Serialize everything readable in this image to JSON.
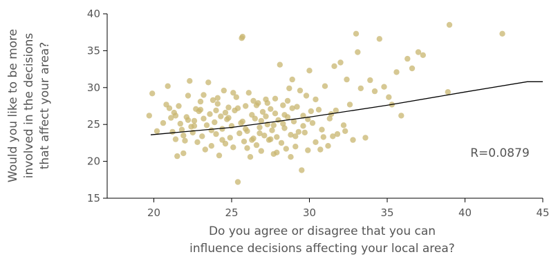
{
  "chart_data": {
    "type": "scatter",
    "title": "",
    "xlabel_lines": [
      "Do you agree or disagree that you can",
      "influence decisions affecting your local area?"
    ],
    "ylabel_lines": [
      "Would you like to be more",
      "involved in the decisions",
      "that affect your area?"
    ],
    "xlim": [
      17,
      45
    ],
    "ylim": [
      15,
      40
    ],
    "x_ticks": [
      20,
      25,
      30,
      35,
      40,
      45
    ],
    "y_ticks": [
      15,
      20,
      25,
      30,
      35,
      40
    ],
    "grid": false,
    "annotation": "R=0.0879",
    "point_color": "#c8b56f",
    "trendline": {
      "color": "#000000",
      "points": [
        [
          19.8,
          23.6
        ],
        [
          25,
          24.6
        ],
        [
          30,
          26.0
        ],
        [
          35,
          27.6
        ],
        [
          40,
          29.4
        ],
        [
          44,
          30.8
        ],
        [
          45,
          30.8
        ]
      ]
    },
    "points": [
      [
        19.7,
        26.2
      ],
      [
        19.9,
        29.2
      ],
      [
        20.2,
        24.1
      ],
      [
        20.8,
        27.7
      ],
      [
        20.9,
        30.2
      ],
      [
        21.0,
        27.2
      ],
      [
        21.1,
        25.9
      ],
      [
        21.2,
        24.0
      ],
      [
        21.3,
        26.6
      ],
      [
        21.4,
        23.0
      ],
      [
        21.5,
        20.7
      ],
      [
        21.6,
        27.5
      ],
      [
        21.7,
        25.1
      ],
      [
        21.8,
        24.3
      ],
      [
        21.9,
        21.1
      ],
      [
        22.0,
        22.8
      ],
      [
        22.1,
        26.0
      ],
      [
        22.2,
        28.9
      ],
      [
        22.3,
        30.9
      ],
      [
        22.4,
        24.7
      ],
      [
        22.5,
        23.9
      ],
      [
        22.6,
        25.5
      ],
      [
        22.8,
        22.6
      ],
      [
        22.9,
        26.8
      ],
      [
        23.0,
        27.0
      ],
      [
        23.1,
        23.4
      ],
      [
        23.2,
        29.0
      ],
      [
        23.3,
        21.6
      ],
      [
        23.4,
        24.9
      ],
      [
        23.5,
        30.7
      ],
      [
        23.6,
        26.4
      ],
      [
        23.7,
        22.1
      ],
      [
        23.8,
        28.3
      ],
      [
        23.9,
        25.3
      ],
      [
        24.0,
        23.7
      ],
      [
        24.1,
        27.8
      ],
      [
        24.2,
        20.8
      ],
      [
        24.3,
        26.1
      ],
      [
        24.4,
        24.4
      ],
      [
        24.5,
        29.6
      ],
      [
        24.6,
        22.4
      ],
      [
        24.7,
        25.7
      ],
      [
        24.8,
        27.3
      ],
      [
        24.9,
        23.2
      ],
      [
        25.0,
        24.8
      ],
      [
        25.1,
        21.9
      ],
      [
        25.2,
        26.9
      ],
      [
        25.3,
        28.7
      ],
      [
        25.4,
        17.2
      ],
      [
        25.5,
        23.8
      ],
      [
        25.6,
        25.2
      ],
      [
        25.65,
        36.7
      ],
      [
        25.7,
        36.9
      ],
      [
        25.8,
        22.7
      ],
      [
        25.9,
        27.5
      ],
      [
        26.0,
        24.1
      ],
      [
        26.1,
        29.3
      ],
      [
        26.2,
        20.6
      ],
      [
        26.3,
        26.3
      ],
      [
        26.4,
        23.1
      ],
      [
        26.5,
        25.8
      ],
      [
        26.6,
        22.2
      ],
      [
        26.7,
        27.9
      ],
      [
        26.8,
        24.6
      ],
      [
        26.9,
        21.4
      ],
      [
        27.0,
        26.7
      ],
      [
        27.1,
        23.5
      ],
      [
        27.2,
        28.4
      ],
      [
        27.3,
        25.0
      ],
      [
        27.4,
        22.9
      ],
      [
        27.5,
        27.1
      ],
      [
        27.6,
        24.2
      ],
      [
        27.7,
        21.0
      ],
      [
        27.8,
        26.5
      ],
      [
        27.9,
        23.3
      ],
      [
        28.0,
        25.6
      ],
      [
        28.1,
        33.1
      ],
      [
        28.2,
        22.5
      ],
      [
        28.3,
        27.6
      ],
      [
        28.4,
        24.5
      ],
      [
        28.5,
        21.7
      ],
      [
        28.6,
        26.0
      ],
      [
        28.7,
        29.9
      ],
      [
        28.8,
        23.6
      ],
      [
        28.9,
        31.1
      ],
      [
        29.0,
        25.4
      ],
      [
        29.1,
        22.0
      ],
      [
        29.2,
        27.4
      ],
      [
        29.3,
        24.0
      ],
      [
        29.4,
        29.6
      ],
      [
        29.5,
        18.8
      ],
      [
        29.6,
        26.2
      ],
      [
        29.7,
        23.9
      ],
      [
        29.8,
        28.9
      ],
      [
        29.9,
        21.5
      ],
      [
        30.0,
        32.3
      ],
      [
        30.2,
        25.2
      ],
      [
        30.4,
        22.6
      ],
      [
        30.6,
        27.0
      ],
      [
        30.8,
        24.3
      ],
      [
        31.0,
        30.2
      ],
      [
        31.2,
        22.1
      ],
      [
        31.4,
        26.4
      ],
      [
        31.6,
        32.9
      ],
      [
        31.8,
        23.7
      ],
      [
        32.0,
        33.4
      ],
      [
        32.2,
        24.9
      ],
      [
        32.4,
        31.1
      ],
      [
        32.6,
        27.7
      ],
      [
        32.8,
        22.9
      ],
      [
        33.0,
        37.3
      ],
      [
        33.1,
        34.8
      ],
      [
        33.3,
        29.9
      ],
      [
        33.6,
        23.2
      ],
      [
        33.9,
        31.0
      ],
      [
        34.2,
        29.5
      ],
      [
        34.5,
        36.6
      ],
      [
        34.8,
        30.1
      ],
      [
        35.1,
        28.7
      ],
      [
        35.3,
        27.7
      ],
      [
        35.6,
        32.1
      ],
      [
        35.9,
        26.2
      ],
      [
        36.3,
        33.9
      ],
      [
        36.6,
        32.6
      ],
      [
        37.0,
        34.8
      ],
      [
        37.3,
        34.4
      ],
      [
        38.9,
        29.4
      ],
      [
        39.0,
        38.5
      ],
      [
        42.4,
        37.3
      ],
      [
        26.4,
        28.2
      ],
      [
        27.8,
        28.5
      ],
      [
        24.6,
        26.6
      ],
      [
        23.2,
        25.8
      ],
      [
        22.7,
        27.1
      ],
      [
        25.9,
        24.4
      ],
      [
        26.9,
        25.5
      ],
      [
        27.5,
        23.0
      ],
      [
        28.9,
        27.2
      ],
      [
        29.6,
        24.8
      ],
      [
        30.4,
        28.4
      ],
      [
        31.3,
        25.8
      ],
      [
        21.9,
        23.5
      ],
      [
        22.6,
        24.8
      ],
      [
        24.1,
        28.6
      ],
      [
        26.3,
        22.9
      ],
      [
        27.2,
        26.1
      ],
      [
        28.4,
        26.3
      ],
      [
        29.1,
        23.4
      ],
      [
        30.1,
        26.8
      ],
      [
        23.7,
        24.2
      ],
      [
        25.4,
        27.2
      ],
      [
        24.8,
        25.9
      ],
      [
        26.6,
        27.6
      ],
      [
        27.7,
        24.9
      ],
      [
        28.6,
        28.2
      ],
      [
        25.1,
        29.3
      ],
      [
        31.7,
        26.9
      ],
      [
        32.3,
        24.1
      ],
      [
        30.9,
        23.3
      ],
      [
        29.9,
        25.7
      ],
      [
        23.0,
        28.1
      ],
      [
        22.2,
        25.6
      ],
      [
        21.4,
        26.2
      ],
      [
        20.6,
        25.2
      ],
      [
        24.4,
        22.9
      ],
      [
        26.0,
        21.8
      ],
      [
        27.9,
        21.2
      ],
      [
        28.8,
        20.6
      ],
      [
        30.7,
        21.6
      ],
      [
        31.5,
        23.4
      ],
      [
        24.0,
        26.9
      ],
      [
        25.7,
        25.4
      ],
      [
        26.8,
        23.8
      ],
      [
        27.3,
        27.9
      ],
      [
        28.3,
        25.1
      ]
    ]
  }
}
